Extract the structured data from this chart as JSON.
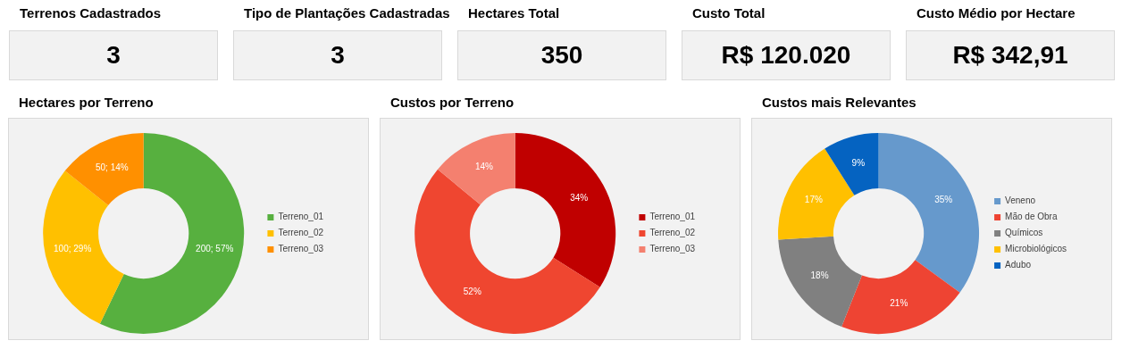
{
  "chart_data": [
    {
      "type": "other",
      "title": "Terrenos Cadastrados",
      "annotations": [
        "3"
      ]
    },
    {
      "type": "other",
      "title": "Tipo de Plantações Cadastradas",
      "annotations": [
        "3"
      ]
    },
    {
      "type": "other",
      "title": "Hectares Total",
      "annotations": [
        "350"
      ]
    },
    {
      "type": "other",
      "title": "Custo Total",
      "annotations": [
        "R$ 120.020"
      ]
    },
    {
      "type": "other",
      "title": "Custo Médio por Hectare",
      "annotations": [
        "R$ 342,91"
      ]
    },
    {
      "type": "donut",
      "title": "Hectares por Terreno",
      "categories": [
        "Terreno_01",
        "Terreno_02",
        "Terreno_03"
      ],
      "values": [
        200,
        100,
        50
      ],
      "colors": [
        "#57b03f",
        "#ffc000",
        "#ff9000"
      ],
      "value_labels": [
        "200; 57%",
        "100; 29%",
        "50; 14%"
      ],
      "legend": "right"
    },
    {
      "type": "donut",
      "title": "Custos por Terreno",
      "categories": [
        "Terreno_01",
        "Terreno_02",
        "Terreno_03"
      ],
      "values": [
        34,
        52,
        14
      ],
      "colors": [
        "#c00000",
        "#ef4630",
        "#f4806f"
      ],
      "value_labels": [
        "34%",
        "52%",
        "14%"
      ],
      "legend": "right"
    },
    {
      "type": "donut",
      "title": "Custos mais Relevantes",
      "categories": [
        "Veneno",
        "Mão de Obra",
        "Químicos",
        "Microbiológicos",
        "Adubo"
      ],
      "values": [
        35,
        21,
        18,
        17,
        9
      ],
      "colors": [
        "#6699cc",
        "#ee4433",
        "#808080",
        "#ffc000",
        "#0563c1"
      ],
      "value_labels": [
        "35%",
        "21%",
        "18%",
        "17%",
        "9%"
      ],
      "legend": "right"
    }
  ]
}
